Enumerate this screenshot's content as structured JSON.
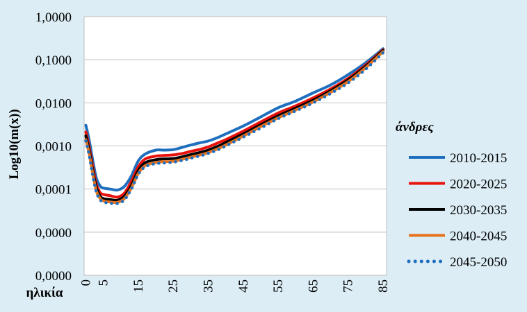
{
  "chart_data": {
    "type": "line",
    "ylabel": "Log10(m(x))",
    "xlabel": "ηλικία",
    "y_scale": "log",
    "ylim": [
      1e-05,
      1
    ],
    "y_ticks": [
      1,
      0.1,
      0.01,
      0.001,
      0.0001,
      1e-05,
      1e-06
    ],
    "y_tick_labels": [
      "1,0000",
      "0,1000",
      "0,0100",
      "0,0010",
      "0,0001",
      "0,0000",
      "0,0000"
    ],
    "x_ticks": [
      0,
      5,
      15,
      25,
      35,
      45,
      55,
      65,
      75,
      85
    ],
    "x_tick_labels": [
      "0",
      "5",
      "15",
      "25",
      "35",
      "45",
      "55",
      "65",
      "75",
      "85"
    ],
    "grid": "horizontal",
    "legend_title": "άνδρες",
    "legend_position": "right",
    "x": [
      0,
      1,
      2,
      3,
      4,
      5,
      7,
      9,
      11,
      13,
      15,
      17,
      20,
      22,
      25,
      28,
      30,
      33,
      35,
      38,
      40,
      45,
      50,
      55,
      60,
      65,
      70,
      75,
      80,
      85
    ],
    "series": [
      {
        "name": "2010-2015",
        "color": "#1f6fbf",
        "style": "solid",
        "values": [
          0.003,
          0.0013,
          0.00045,
          0.00018,
          0.00012,
          0.000105,
          0.0001,
          9.5e-05,
          0.000115,
          0.0002,
          0.00045,
          0.00065,
          0.0008,
          0.0008,
          0.00082,
          0.00095,
          0.00105,
          0.0012,
          0.0013,
          0.0016,
          0.0019,
          0.0029,
          0.0047,
          0.0077,
          0.011,
          0.017,
          0.026,
          0.045,
          0.085,
          0.18
        ]
      },
      {
        "name": "2020-2025",
        "color": "#e8120c",
        "style": "solid",
        "values": [
          0.0021,
          0.0009,
          0.00032,
          0.00013,
          8.5e-05,
          7.5e-05,
          7e-05,
          6.5e-05,
          8e-05,
          0.00015,
          0.00033,
          0.0005,
          0.00058,
          0.0006,
          0.00062,
          0.00068,
          0.00075,
          0.00085,
          0.00095,
          0.0012,
          0.0014,
          0.0022,
          0.0036,
          0.0058,
          0.0085,
          0.013,
          0.021,
          0.037,
          0.075,
          0.17
        ]
      },
      {
        "name": "2030-2035",
        "color": "#000000",
        "style": "solid",
        "values": [
          0.0017,
          0.00075,
          0.00026,
          0.00011,
          7e-05,
          6e-05,
          5.7e-05,
          5.5e-05,
          6.8e-05,
          0.00012,
          0.00027,
          0.00041,
          0.00048,
          0.0005,
          0.00051,
          0.00057,
          0.00063,
          0.00072,
          0.0008,
          0.001,
          0.0012,
          0.0019,
          0.0031,
          0.005,
          0.0075,
          0.0115,
          0.019,
          0.034,
          0.07,
          0.165
        ]
      },
      {
        "name": "2040-2045",
        "color": "#e8721c",
        "style": "solid",
        "values": [
          0.0014,
          0.00063,
          0.00022,
          9e-05,
          6.2e-05,
          5.3e-05,
          5e-05,
          4.9e-05,
          6e-05,
          0.000105,
          0.00023,
          0.00035,
          0.00041,
          0.00043,
          0.00044,
          0.0005,
          0.00055,
          0.00063,
          0.0007,
          0.00088,
          0.00105,
          0.0017,
          0.0028,
          0.0045,
          0.0068,
          0.0105,
          0.0175,
          0.031,
          0.065,
          0.155
        ]
      },
      {
        "name": "2045-2050",
        "color": "#1f6fbf",
        "style": "dotted",
        "values": [
          0.0013,
          0.00058,
          0.0002,
          8.5e-05,
          5.8e-05,
          5e-05,
          4.7e-05,
          4.6e-05,
          5.6e-05,
          0.0001,
          0.00022,
          0.00033,
          0.00039,
          0.0004,
          0.00042,
          0.00047,
          0.00052,
          0.0006,
          0.00067,
          0.00083,
          0.001,
          0.0016,
          0.0026,
          0.0043,
          0.0065,
          0.01,
          0.0165,
          0.029,
          0.06,
          0.145
        ]
      }
    ]
  }
}
